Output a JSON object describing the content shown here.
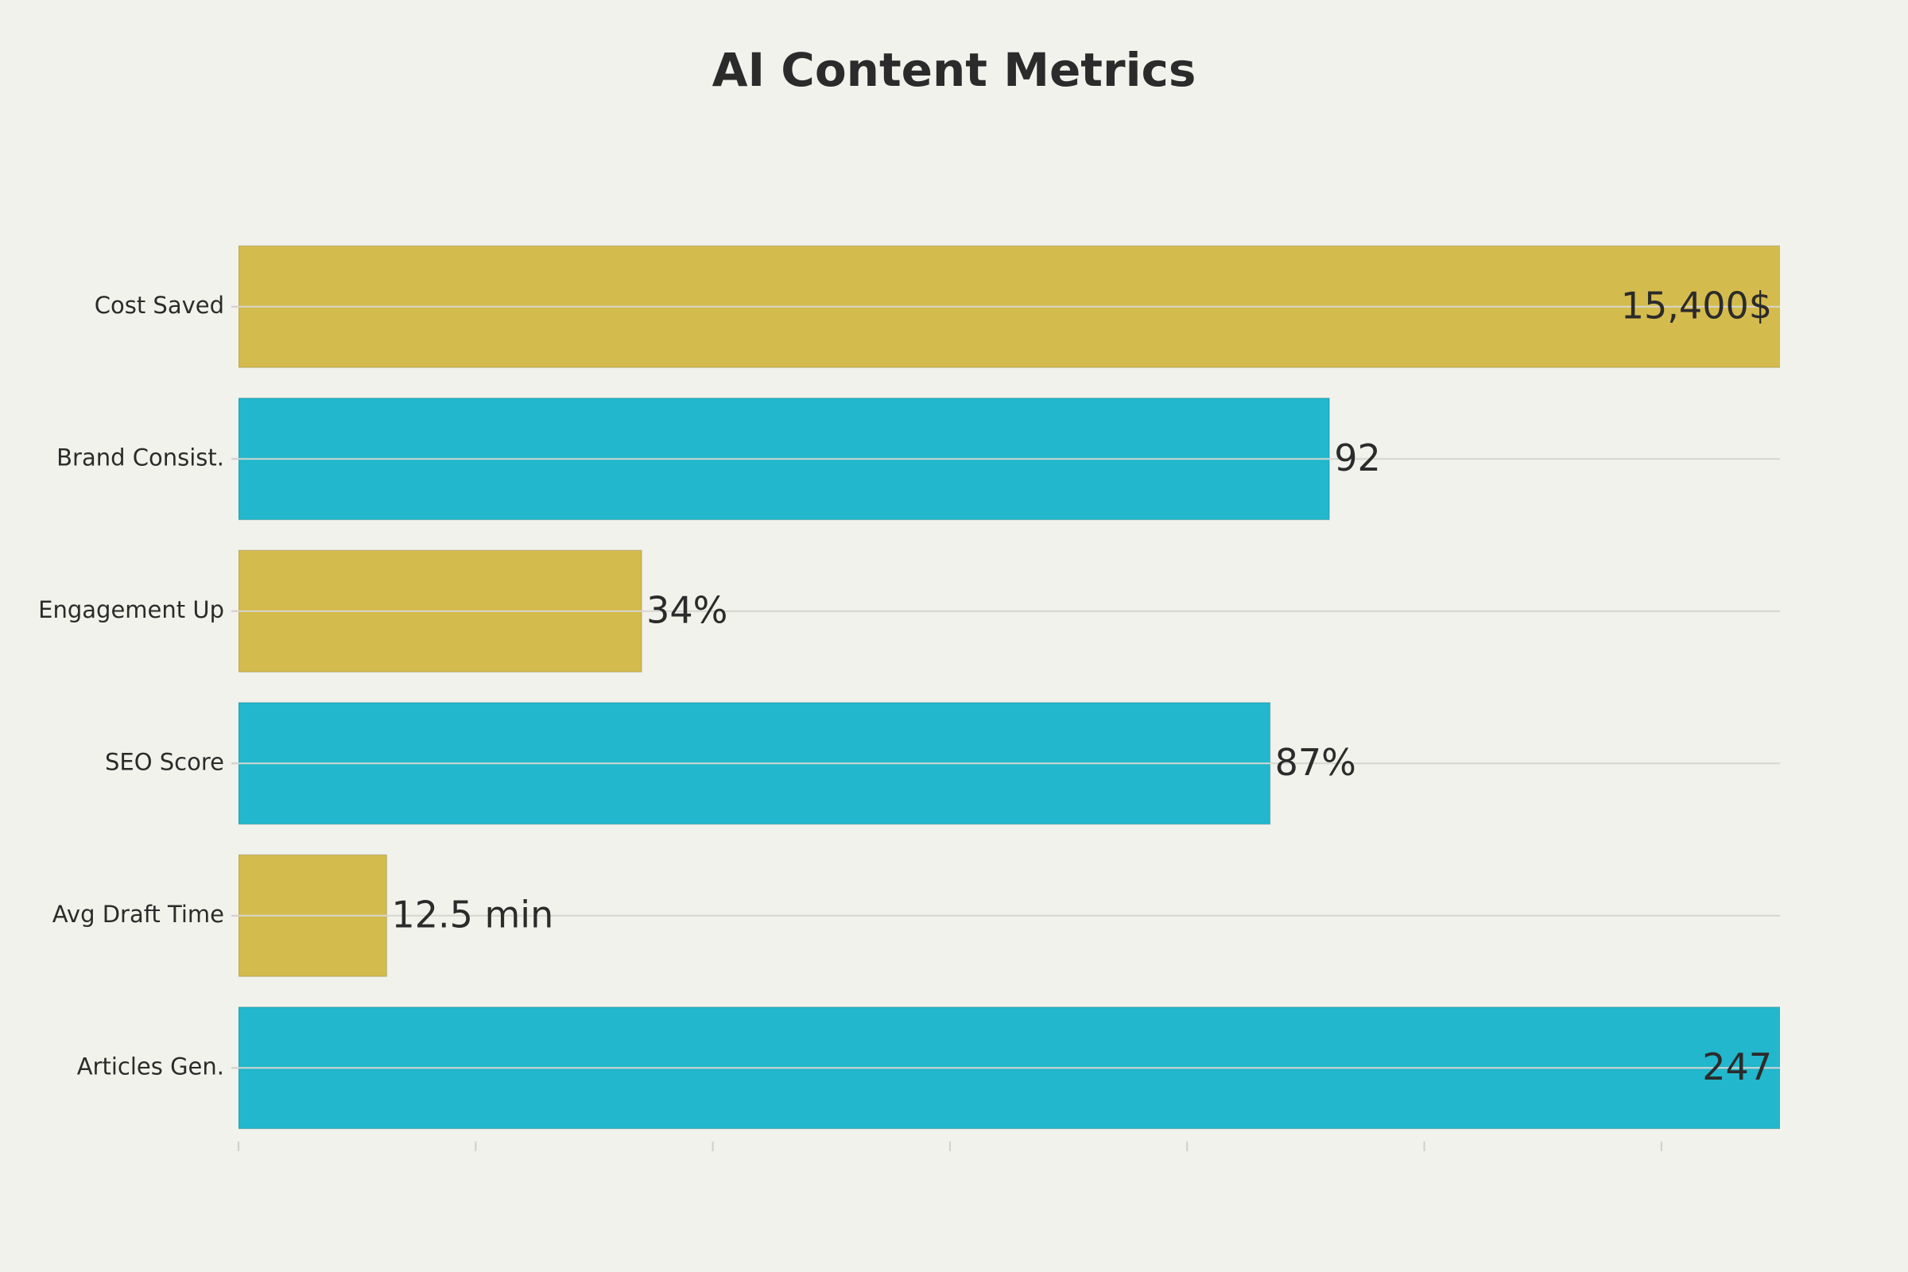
{
  "chart_data": {
    "type": "barh",
    "title": "AI Content Metrics",
    "categories": [
      "Cost Saved",
      "Brand Consist.",
      "Engagement Up",
      "SEO Score",
      "Avg Draft Time",
      "Articles Gen."
    ],
    "values": [
      15400,
      92,
      34,
      87,
      12.5,
      247
    ],
    "value_labels": [
      "15,400$",
      "92",
      "34%",
      "87%",
      "12.5 min",
      "247"
    ],
    "colors": [
      "#d4bb4d",
      "#22b7cc",
      "#d4bb4d",
      "#22b7cc",
      "#d4bb4d",
      "#22b7cc"
    ],
    "xlim": [
      0,
      130
    ],
    "xticks": [
      0,
      20,
      40,
      60,
      80,
      100,
      120
    ],
    "grid": true
  }
}
